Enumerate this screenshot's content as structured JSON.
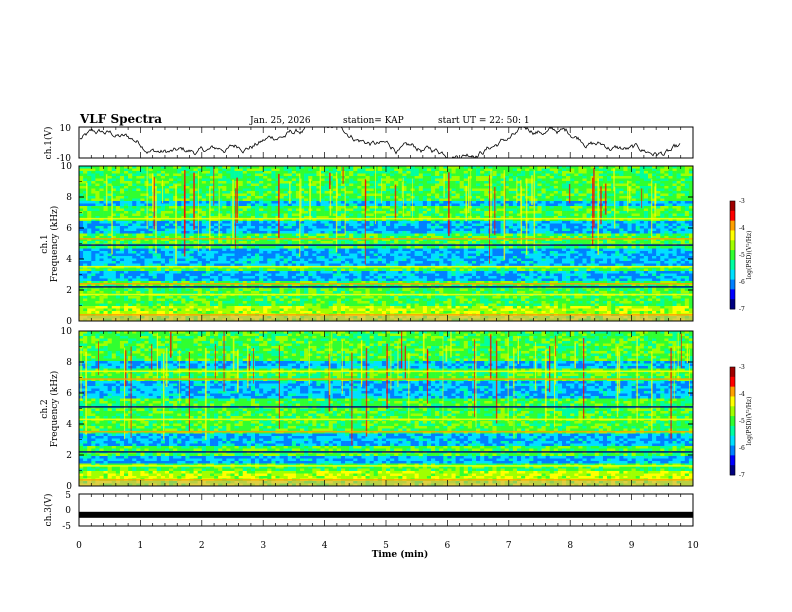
{
  "header": {
    "title": "VLF Spectra",
    "date": "Jan. 25, 2026",
    "station": "station= KAP",
    "start": "start UT =  22: 50: 1"
  },
  "colors": {
    "spectrum": [
      "#000080",
      "#0000ff",
      "#0080ff",
      "#00e0ff",
      "#00ffa0",
      "#30ff30",
      "#a0ff00",
      "#ffff00",
      "#ffa000",
      "#ff0000",
      "#a00000"
    ]
  },
  "chart_data": [
    {
      "type": "line",
      "name": "ch1-voltage",
      "ylabel": "ch.1(V)",
      "ylim": [
        -10,
        10
      ],
      "yticks": [
        "10",
        "-10"
      ],
      "x_range_min": [
        0,
        9.8
      ],
      "note": "noisy waveform roughly between -8 and 9 V"
    },
    {
      "type": "heatmap",
      "name": "ch1-spectrogram",
      "ylabel": "ch.1\nFrequency (kHz)",
      "ylabel_top": "ch.1",
      "ylabel_bottom": "Frequency (kHz)",
      "ylim": [
        0,
        10
      ],
      "yticks": [
        "0",
        "2",
        "4",
        "6",
        "8",
        "10"
      ],
      "colorbar": {
        "label": "log(PSD)(V²/Hz)",
        "range": [
          -7,
          -3
        ],
        "ticks": [
          "-3",
          "-4",
          "-5",
          "-6",
          "-7"
        ]
      },
      "quiet_bands_khz": [
        [
          5.6,
          6.4
        ],
        [
          3.6,
          4.6
        ],
        [
          2.6,
          3.2
        ],
        [
          7.4,
          7.8
        ]
      ],
      "strong_lines_khz": [
        0.4,
        1.7,
        2.2,
        2.4,
        3.5,
        4.9,
        5.3,
        6.6
      ]
    },
    {
      "type": "heatmap",
      "name": "ch2-spectrogram",
      "ylabel_top": "ch.2",
      "ylabel_bottom": "Frequency (kHz)",
      "ylim": [
        0,
        10
      ],
      "yticks": [
        "0",
        "2",
        "4",
        "6",
        "8",
        "10"
      ],
      "colorbar": {
        "label": "log(PSD)(V²/Hz)",
        "range": [
          -7,
          -3
        ],
        "ticks": [
          "-3",
          "-4",
          "-5",
          "-6",
          "-7"
        ]
      },
      "quiet_bands_khz": [
        [
          5.6,
          6.8
        ],
        [
          2.6,
          3.4
        ],
        [
          1.5,
          1.9
        ],
        [
          7.6,
          8.0
        ]
      ],
      "strong_lines_khz": [
        0.4,
        1.3,
        2.2,
        3.5,
        4.3,
        5.1,
        6.9,
        7.4
      ]
    },
    {
      "type": "line",
      "name": "ch3-voltage",
      "ylabel": "ch.3(V)",
      "ylim": [
        -5,
        5
      ],
      "yticks": [
        "5",
        "0",
        "-5"
      ],
      "constant_value": -1.5
    }
  ],
  "xaxis": {
    "label": "Time (min)",
    "ticks": [
      "0",
      "1",
      "2",
      "3",
      "4",
      "5",
      "6",
      "7",
      "8",
      "9",
      "10"
    ],
    "range": [
      0,
      10
    ]
  }
}
